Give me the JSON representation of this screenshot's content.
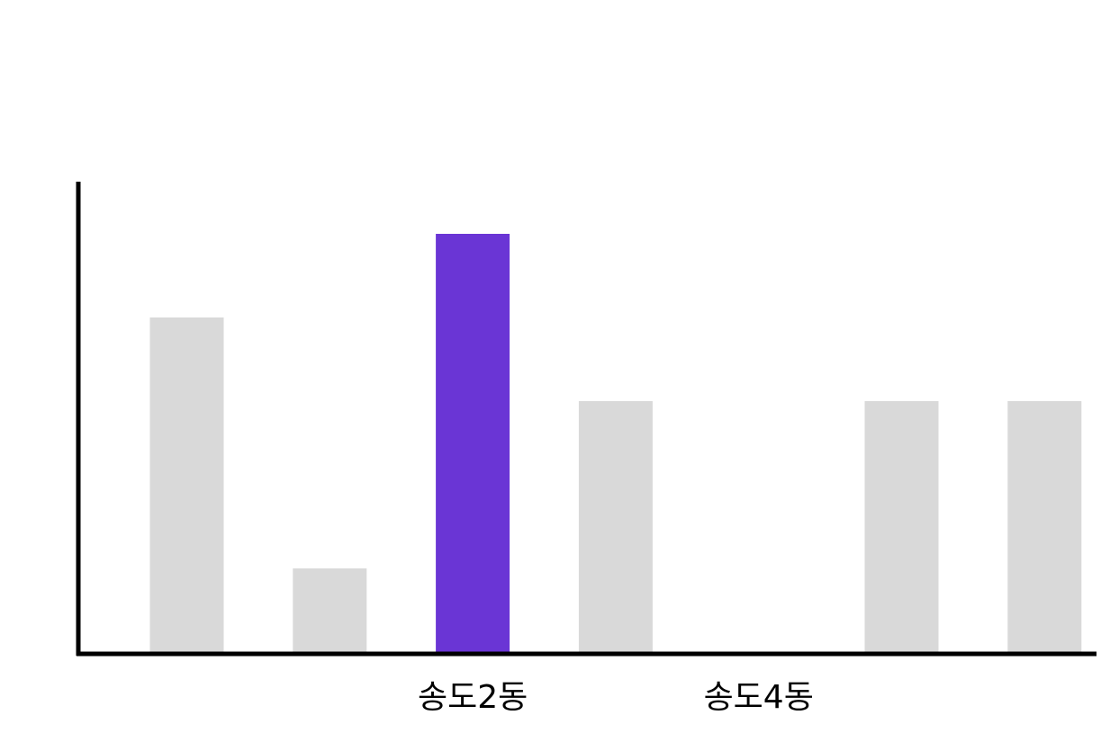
{
  "chart_data": {
    "type": "bar",
    "categories": [
      "",
      "",
      "송도2동",
      "",
      "송도4동",
      "",
      ""
    ],
    "values": [
      4,
      1,
      5,
      3,
      0,
      3,
      3
    ],
    "ylim": [
      0,
      6
    ],
    "grid": false,
    "legend": "none",
    "colors": {
      "default_bar": "#d9d9d9",
      "highlight_bar": "#6a35d5",
      "axis": "#000000"
    },
    "highlight_index": 2
  }
}
